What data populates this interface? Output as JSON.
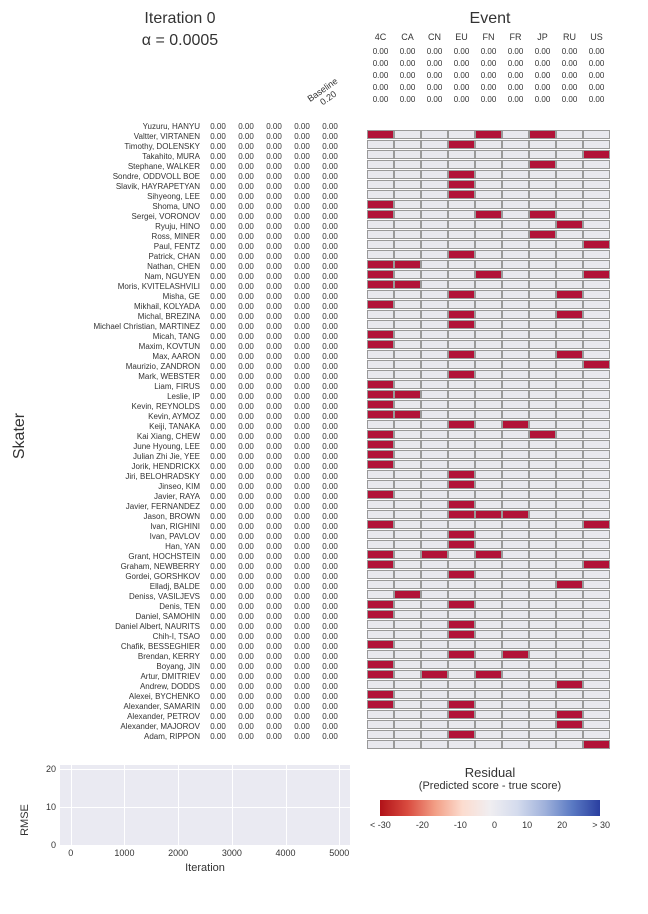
{
  "left_title_line1": "Iteration 0",
  "left_title_line2": "α = 0.0005",
  "right_title": "Event",
  "baseline_label": "Baseline\n0.20",
  "baseline_rows_left": 5,
  "baseline_left_val": "0.00",
  "events": [
    "4C",
    "CA",
    "CN",
    "EU",
    "FN",
    "FR",
    "JP",
    "RU",
    "US"
  ],
  "skater_ylabel": "Skater",
  "skater_val_cols": 5,
  "skater_val": "0.00",
  "skaters": [
    "Yuzuru, HANYU",
    "Valtter, VIRTANEN",
    "Timothy, DOLENSKY",
    "Takahito, MURA",
    "Stephane, WALKER",
    "Sondre, ODDVOLL BOE",
    "Slavik, HAYRAPETYAN",
    "Sihyeong, LEE",
    "Shoma, UNO",
    "Sergei, VORONOV",
    "Ryuju, HINO",
    "Ross, MINER",
    "Paul, FENTZ",
    "Patrick, CHAN",
    "Nathan, CHEN",
    "Nam, NGUYEN",
    "Moris, KVITELASHVILI",
    "Misha, GE",
    "Mikhail, KOLYADA",
    "Michal, BREZINA",
    "Michael Christian, MARTINEZ",
    "Micah, TANG",
    "Maxim, KOVTUN",
    "Max, AARON",
    "Maurizio, ZANDRON",
    "Mark, WEBSTER",
    "Liam, FIRUS",
    "Leslie, IP",
    "Kevin, REYNOLDS",
    "Kevin, AYMOZ",
    "Keiji, TANAKA",
    "Kai Xiang, CHEW",
    "June Hyoung, LEE",
    "Julian Zhi Jie, YEE",
    "Jorik, HENDRICKX",
    "Jiri, BELOHRADSKY",
    "Jinseo, KIM",
    "Javier, RAYA",
    "Javier, FERNANDEZ",
    "Jason, BROWN",
    "Ivan, RIGHINI",
    "Ivan, PAVLOV",
    "Han, YAN",
    "Grant, HOCHSTEIN",
    "Graham, NEWBERRY",
    "Gordei, GORSHKOV",
    "Elladj, BALDE",
    "Deniss, VASILJEVS",
    "Denis, TEN",
    "Daniel, SAMOHIN",
    "Daniel Albert, NAURITS",
    "Chih-I, TSAO",
    "Chafik, BESSEGHIER",
    "Brendan, KERRY",
    "Boyang, JIN",
    "Artur, DMITRIEV",
    "Andrew, DODDS",
    "Alexei, BYCHENKO",
    "Alexander, SAMARIN",
    "Alexander, PETROV",
    "Alexander, MAJOROV",
    "Adam, RIPPON"
  ],
  "heatmap_colors": {
    "empty": "#e8e8ee",
    "filled": "#b11237"
  },
  "heatmap": [
    [
      1,
      0,
      0,
      0,
      1,
      0,
      1,
      0,
      0
    ],
    [
      0,
      0,
      0,
      1,
      0,
      0,
      0,
      0,
      0
    ],
    [
      0,
      0,
      0,
      0,
      0,
      0,
      0,
      0,
      1
    ],
    [
      0,
      0,
      0,
      0,
      0,
      0,
      1,
      0,
      0
    ],
    [
      0,
      0,
      0,
      1,
      0,
      0,
      0,
      0,
      0
    ],
    [
      0,
      0,
      0,
      1,
      0,
      0,
      0,
      0,
      0
    ],
    [
      0,
      0,
      0,
      1,
      0,
      0,
      0,
      0,
      0
    ],
    [
      1,
      0,
      0,
      0,
      0,
      0,
      0,
      0,
      0
    ],
    [
      1,
      0,
      0,
      0,
      1,
      0,
      1,
      0,
      0
    ],
    [
      0,
      0,
      0,
      0,
      0,
      0,
      0,
      1,
      0
    ],
    [
      0,
      0,
      0,
      0,
      0,
      0,
      1,
      0,
      0
    ],
    [
      0,
      0,
      0,
      0,
      0,
      0,
      0,
      0,
      1
    ],
    [
      0,
      0,
      0,
      1,
      0,
      0,
      0,
      0,
      0
    ],
    [
      1,
      1,
      0,
      0,
      0,
      0,
      0,
      0,
      0
    ],
    [
      1,
      0,
      0,
      0,
      1,
      0,
      0,
      0,
      1
    ],
    [
      1,
      1,
      0,
      0,
      0,
      0,
      0,
      0,
      0
    ],
    [
      0,
      0,
      0,
      1,
      0,
      0,
      0,
      1,
      0
    ],
    [
      1,
      0,
      0,
      0,
      0,
      0,
      0,
      0,
      0
    ],
    [
      0,
      0,
      0,
      1,
      0,
      0,
      0,
      1,
      0
    ],
    [
      0,
      0,
      0,
      1,
      0,
      0,
      0,
      0,
      0
    ],
    [
      1,
      0,
      0,
      0,
      0,
      0,
      0,
      0,
      0
    ],
    [
      1,
      0,
      0,
      0,
      0,
      0,
      0,
      0,
      0
    ],
    [
      0,
      0,
      0,
      1,
      0,
      0,
      0,
      1,
      0
    ],
    [
      0,
      0,
      0,
      0,
      0,
      0,
      0,
      0,
      1
    ],
    [
      0,
      0,
      0,
      1,
      0,
      0,
      0,
      0,
      0
    ],
    [
      1,
      0,
      0,
      0,
      0,
      0,
      0,
      0,
      0
    ],
    [
      1,
      1,
      0,
      0,
      0,
      0,
      0,
      0,
      0
    ],
    [
      1,
      0,
      0,
      0,
      0,
      0,
      0,
      0,
      0
    ],
    [
      1,
      1,
      0,
      0,
      0,
      0,
      0,
      0,
      0
    ],
    [
      0,
      0,
      0,
      1,
      0,
      1,
      0,
      0,
      0
    ],
    [
      1,
      0,
      0,
      0,
      0,
      0,
      1,
      0,
      0
    ],
    [
      1,
      0,
      0,
      0,
      0,
      0,
      0,
      0,
      0
    ],
    [
      1,
      0,
      0,
      0,
      0,
      0,
      0,
      0,
      0
    ],
    [
      1,
      0,
      0,
      0,
      0,
      0,
      0,
      0,
      0
    ],
    [
      0,
      0,
      0,
      1,
      0,
      0,
      0,
      0,
      0
    ],
    [
      0,
      0,
      0,
      1,
      0,
      0,
      0,
      0,
      0
    ],
    [
      1,
      0,
      0,
      0,
      0,
      0,
      0,
      0,
      0
    ],
    [
      0,
      0,
      0,
      1,
      0,
      0,
      0,
      0,
      0
    ],
    [
      0,
      0,
      0,
      1,
      1,
      1,
      0,
      0,
      0
    ],
    [
      1,
      0,
      0,
      0,
      0,
      0,
      0,
      0,
      1
    ],
    [
      0,
      0,
      0,
      1,
      0,
      0,
      0,
      0,
      0
    ],
    [
      0,
      0,
      0,
      1,
      0,
      0,
      0,
      0,
      0
    ],
    [
      1,
      0,
      1,
      0,
      1,
      0,
      0,
      0,
      0
    ],
    [
      1,
      0,
      0,
      0,
      0,
      0,
      0,
      0,
      1
    ],
    [
      0,
      0,
      0,
      1,
      0,
      0,
      0,
      0,
      0
    ],
    [
      0,
      0,
      0,
      0,
      0,
      0,
      0,
      1,
      0
    ],
    [
      0,
      1,
      0,
      0,
      0,
      0,
      0,
      0,
      0
    ],
    [
      1,
      0,
      0,
      1,
      0,
      0,
      0,
      0,
      0
    ],
    [
      1,
      0,
      0,
      0,
      0,
      0,
      0,
      0,
      0
    ],
    [
      0,
      0,
      0,
      1,
      0,
      0,
      0,
      0,
      0
    ],
    [
      0,
      0,
      0,
      1,
      0,
      0,
      0,
      0,
      0
    ],
    [
      1,
      0,
      0,
      0,
      0,
      0,
      0,
      0,
      0
    ],
    [
      0,
      0,
      0,
      1,
      0,
      1,
      0,
      0,
      0
    ],
    [
      1,
      0,
      0,
      0,
      0,
      0,
      0,
      0,
      0
    ],
    [
      1,
      0,
      1,
      0,
      1,
      0,
      0,
      0,
      0
    ],
    [
      0,
      0,
      0,
      0,
      0,
      0,
      0,
      1,
      0
    ],
    [
      1,
      0,
      0,
      0,
      0,
      0,
      0,
      0,
      0
    ],
    [
      1,
      0,
      0,
      1,
      0,
      0,
      0,
      0,
      0
    ],
    [
      0,
      0,
      0,
      1,
      0,
      0,
      0,
      1,
      0
    ],
    [
      0,
      0,
      0,
      0,
      0,
      0,
      0,
      1,
      0
    ],
    [
      0,
      0,
      0,
      1,
      0,
      0,
      0,
      0,
      0
    ],
    [
      0,
      0,
      0,
      0,
      0,
      0,
      0,
      0,
      1
    ]
  ],
  "rmse": {
    "ylabel": "RMSE",
    "xlabel": "Iteration",
    "yticks": [
      0,
      10,
      20
    ],
    "xticks": [
      0,
      1000,
      2000,
      3000,
      4000,
      5000
    ],
    "ylim": [
      0,
      21
    ],
    "xlim": [
      -200,
      5200
    ],
    "bg": "#eaeaf2",
    "grid": "#ffffff"
  },
  "residual": {
    "title": "Residual",
    "subtitle": "(Predicted score - true score)",
    "ticks": [
      "< -30",
      "-20",
      "-10",
      "0",
      "10",
      "20",
      "> 30"
    ]
  }
}
